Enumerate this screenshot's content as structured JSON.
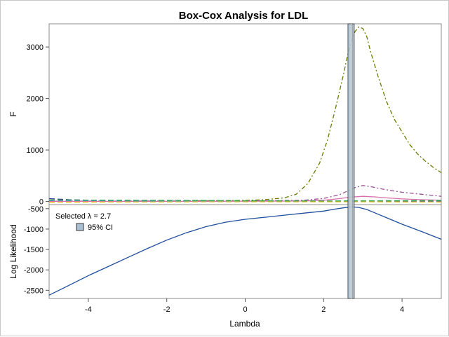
{
  "chart_data": {
    "title": "Box-Cox Analysis for LDL",
    "xlabel": "Lambda",
    "xlim": [
      -5,
      5
    ],
    "x_ticks": [
      -4,
      -2,
      0,
      2,
      4
    ],
    "selected_lambda": 2.7,
    "ci": [
      2.62,
      2.78
    ],
    "panels": [
      {
        "type": "line",
        "ylabel": "F",
        "ylim": [
          -60,
          3450
        ],
        "y_ticks": [
          0,
          1000,
          2000,
          3000
        ],
        "series": [
          {
            "color": "#6b7a00",
            "dash": "6 3 2 3",
            "x": [
              -5,
              -4,
              -3,
              -2,
              -1,
              0,
              0.5,
              1.0,
              1.3,
              1.6,
              1.9,
              2.1,
              2.3,
              2.5,
              2.6,
              2.7,
              2.8,
              2.9,
              3.0,
              3.1,
              3.2,
              3.4,
              3.6,
              3.8,
              4.0,
              4.2,
              4.4,
              4.6,
              4.8,
              5.0
            ],
            "y": [
              5,
              6,
              8,
              10,
              15,
              22,
              35,
              70,
              140,
              350,
              750,
              1200,
              1800,
              2450,
              2800,
              3100,
              3300,
              3390,
              3360,
              3200,
              2900,
              2400,
              1950,
              1600,
              1350,
              1100,
              920,
              780,
              660,
              560
            ]
          },
          {
            "color": "#9b4f96",
            "dash": "6 3 2 3",
            "x": [
              -5,
              -2,
              0,
              1.5,
              2.0,
              2.4,
              2.6,
              2.8,
              3.0,
              3.2,
              3.5,
              4.0,
              4.5,
              5.0
            ],
            "y": [
              8,
              6,
              10,
              25,
              60,
              130,
              200,
              270,
              310,
              290,
              240,
              180,
              140,
              100
            ]
          },
          {
            "color": "#d86fa8",
            "dash": "",
            "x": [
              -5,
              -2,
              0,
              1.5,
              2.0,
              2.4,
              2.7,
              3.0,
              3.3,
              3.6,
              4.0,
              4.5,
              5.0
            ],
            "y": [
              2,
              3,
              5,
              10,
              25,
              55,
              85,
              100,
              90,
              70,
              50,
              35,
              25
            ]
          },
          {
            "color": "#2a3f8f",
            "dash": "8 4",
            "x": [
              -5,
              -4.5,
              -4,
              -3,
              -2,
              -1,
              0,
              1,
              2,
              3,
              4,
              5
            ],
            "y": [
              55,
              35,
              25,
              15,
              10,
              8,
              6,
              5,
              5,
              6,
              8,
              10
            ]
          },
          {
            "color": "#3f9ad6",
            "dash": "8 4",
            "x": [
              -5,
              -4,
              -3,
              -2,
              -1,
              0,
              1,
              2,
              3,
              4,
              5
            ],
            "y": [
              20,
              18,
              14,
              10,
              7,
              5,
              5,
              8,
              12,
              16,
              20
            ]
          },
          {
            "color": "#e8c31a",
            "dash": "8 4",
            "x": [
              -5,
              -4,
              -3,
              -2,
              -1,
              0,
              1,
              2,
              3,
              4,
              5
            ],
            "y": [
              -15,
              -12,
              -10,
              -8,
              -6,
              -5,
              -5,
              -6,
              -5,
              -8,
              -10
            ]
          },
          {
            "color": "#3aa64a",
            "dash": "8 4",
            "x": [
              -5,
              -3,
              -1,
              0,
              1,
              2,
              3,
              4,
              5
            ],
            "y": [
              30,
              25,
              20,
              15,
              12,
              10,
              12,
              15,
              18
            ]
          }
        ]
      },
      {
        "type": "line",
        "ylabel": "Log Likelihood",
        "ylim": [
          -2700,
          -400
        ],
        "y_ticks": [
          -500,
          -1000,
          -1500,
          -2000,
          -2500
        ],
        "series": [
          {
            "color": "#1f4e9c",
            "dash": "",
            "x": [
              -5,
              -4.5,
              -4,
              -3.5,
              -3,
              -2.5,
              -2,
              -1.5,
              -1,
              -0.5,
              0,
              0.5,
              1,
              1.5,
              2,
              2.3,
              2.5,
              2.7,
              2.9,
              3.1,
              3.3,
              3.6,
              4,
              4.5,
              5
            ],
            "y": [
              -2620,
              -2380,
              -2140,
              -1920,
              -1700,
              -1480,
              -1270,
              -1090,
              -940,
              -830,
              -760,
              -710,
              -660,
              -610,
              -560,
              -510,
              -480,
              -455,
              -470,
              -520,
              -600,
              -720,
              -880,
              -1060,
              -1250
            ]
          }
        ]
      }
    ],
    "legend": {
      "selected_label": "Selected λ = 2.7",
      "ci_label": "95% CI",
      "ci_fill": "#a9bfd4",
      "ci_edge": "#333333",
      "placement": "top-left"
    }
  }
}
